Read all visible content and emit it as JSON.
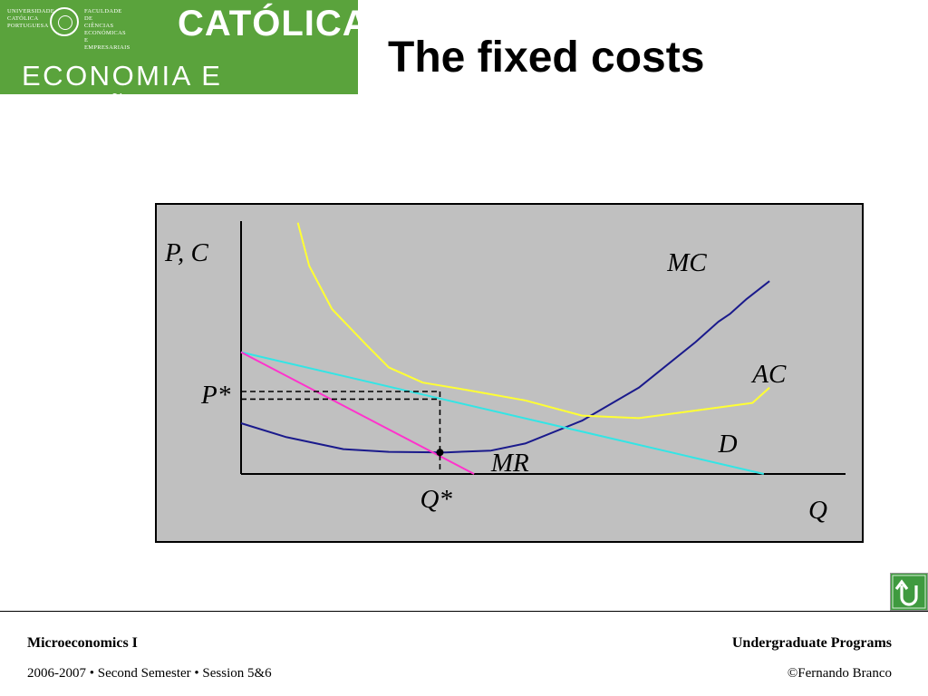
{
  "logo": {
    "university_lines": [
      "UNIVERSIDADE",
      "CATÓLICA",
      "PORTUGUESA"
    ],
    "faculty_lines": [
      "FACULDADE DE",
      "CIÊNCIAS",
      "ECONÓMICAS E",
      "EMPRESARIAIS"
    ],
    "brand_top": "CATÓLICA",
    "brand_bottom": "ECONOMIA E GESTÃO",
    "color": "#5aa33c"
  },
  "slide": {
    "title": "The fixed costs"
  },
  "chart_data": {
    "type": "line",
    "axis_labels": {
      "y": "P, C",
      "x": "Q"
    },
    "axis_range": {
      "x": [
        0,
        10
      ],
      "y": [
        0,
        10
      ]
    },
    "series": [
      {
        "name": "MC",
        "color": "#1a1a8c",
        "points": [
          [
            0,
            2.0
          ],
          [
            0.8,
            1.45
          ],
          [
            1.8,
            0.98
          ],
          [
            2.6,
            0.87
          ],
          [
            3.6,
            0.85
          ],
          [
            4.4,
            0.92
          ],
          [
            5.0,
            1.2
          ],
          [
            6.0,
            2.1
          ],
          [
            7.0,
            3.4
          ],
          [
            8.0,
            5.2
          ],
          [
            8.4,
            6.0
          ],
          [
            8.6,
            6.3
          ],
          [
            8.9,
            6.9
          ],
          [
            9.3,
            7.6
          ]
        ]
      },
      {
        "name": "AC",
        "color": "#ffff33",
        "points": [
          [
            1.0,
            9.9
          ],
          [
            1.2,
            8.2
          ],
          [
            1.6,
            6.5
          ],
          [
            2.2,
            5.1
          ],
          [
            2.6,
            4.2
          ],
          [
            3.2,
            3.6
          ],
          [
            4.0,
            3.3
          ],
          [
            5.0,
            2.9
          ],
          [
            6.0,
            2.3
          ],
          [
            7.0,
            2.2
          ],
          [
            8.0,
            2.5
          ],
          [
            9.0,
            2.8
          ],
          [
            9.3,
            3.4
          ]
        ]
      },
      {
        "name": "D",
        "color": "#33e5e5",
        "points": [
          [
            0,
            4.8
          ],
          [
            9.2,
            0.0
          ]
        ]
      },
      {
        "name": "MR",
        "color": "#ff33cc",
        "points": [
          [
            0,
            4.8
          ],
          [
            4.1,
            0.0
          ]
        ]
      }
    ],
    "curve_labels": [
      {
        "text": "MC",
        "x": 7.5,
        "y": 8.0
      },
      {
        "text": "AC",
        "x": 9.0,
        "y": 3.6
      },
      {
        "text": "D",
        "x": 8.4,
        "y": 0.85
      },
      {
        "text": "MR",
        "x": 4.4,
        "y": 0.1
      }
    ],
    "equilibrium": {
      "q": 3.5,
      "p_upper": 3.25,
      "p_lower": 2.95,
      "mc_at_q": 0.85,
      "q_label": "Q*",
      "p_label": "P*"
    }
  },
  "footer": {
    "course": "Microeconomics I",
    "program": "Undergraduate Programs",
    "session": "2006-2007 • Second Semester • Session 5&6",
    "copyright": "©Fernando Branco"
  }
}
